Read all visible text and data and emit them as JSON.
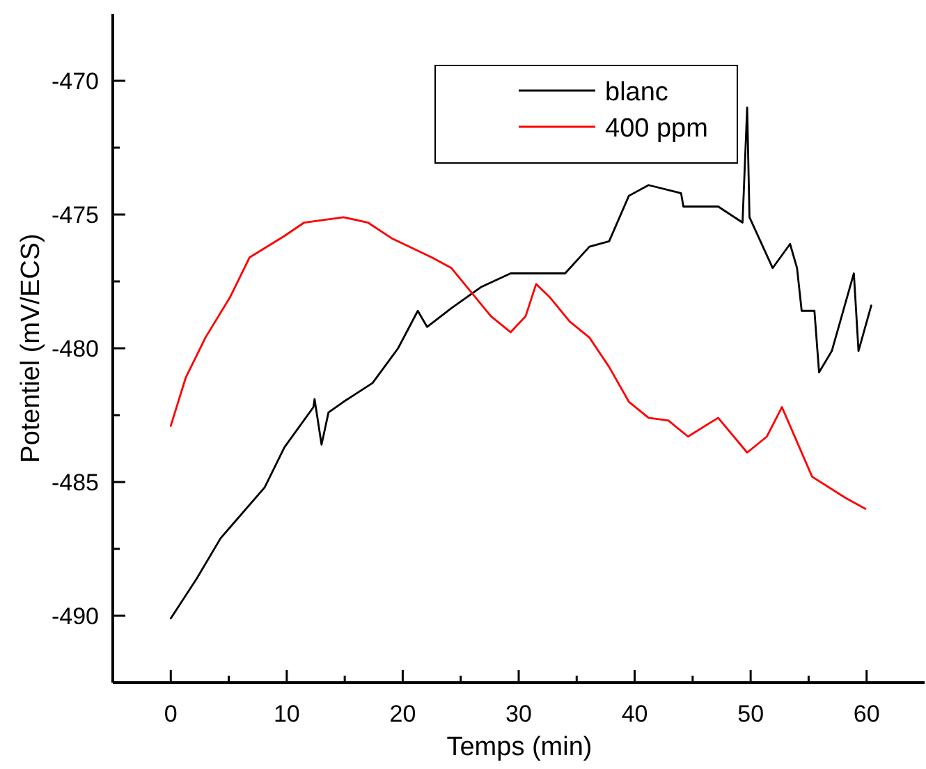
{
  "chart_data": {
    "type": "line",
    "xlabel": "Temps (min)",
    "ylabel": "Potentiel (mV/ECS)",
    "xlim": [
      -5,
      65
    ],
    "xticks": [
      0,
      {
        "value": 5,
        "label": null
      },
      10,
      {
        "value": 15,
        "label": null
      },
      20,
      {
        "value": 25,
        "label": null
      },
      30,
      {
        "value": 35,
        "label": null
      },
      40,
      {
        "value": 45,
        "label": null
      },
      50,
      {
        "value": 55,
        "label": null
      },
      60
    ],
    "ylim": [
      -492.5,
      -467.5
    ],
    "yticks": [
      -490,
      {
        "value": -487.5,
        "label": null
      },
      -485,
      {
        "value": -482.5,
        "label": null
      },
      -480,
      {
        "value": -477.5,
        "label": null
      },
      -475,
      {
        "value": -472.5,
        "label": null
      },
      -470
    ],
    "legend": "top",
    "grid": false,
    "line_style": "solid",
    "marker": "none",
    "series": [
      {
        "name": "blanc",
        "color": "#000000",
        "x": [
          0,
          2.25,
          4.3,
          5.1,
          8.1,
          9.8,
          12.3,
          12.4,
          13.0,
          13.6,
          14.9,
          17.4,
          19.6,
          21.3,
          22.1,
          24.2,
          26.8,
          29.3,
          34.0,
          36.1,
          37.8,
          39.5,
          41.2,
          44.0,
          44.2,
          47.2,
          49.3,
          49.7,
          49.9,
          51.9,
          53.4,
          54.0,
          54.4,
          55.5,
          55.9,
          57.0,
          58.9,
          59.3,
          60.4
        ],
        "values": [
          -490.1,
          -488.6,
          -487.1,
          -486.7,
          -485.2,
          -483.7,
          -482.2,
          -481.9,
          -483.6,
          -482.4,
          -482.0,
          -481.3,
          -480.0,
          -478.6,
          -479.2,
          -478.5,
          -477.7,
          -477.2,
          -477.2,
          -476.2,
          -476.0,
          -474.3,
          -473.9,
          -474.2,
          -474.7,
          -474.7,
          -475.3,
          -471.0,
          -475.1,
          -477.0,
          -476.1,
          -477.0,
          -478.6,
          -478.6,
          -480.9,
          -480.1,
          -477.2,
          -480.1,
          -478.4
        ]
      },
      {
        "name": "400 ppm",
        "color": "#ff0000",
        "x": [
          0,
          1.29,
          2.99,
          5.1,
          6.8,
          9.8,
          11.5,
          14.9,
          17.0,
          19.1,
          22.5,
          24.2,
          25.9,
          27.6,
          29.3,
          30.6,
          31.5,
          32.7,
          34.4,
          36.1,
          37.8,
          39.5,
          41.2,
          42.9,
          44.6,
          47.2,
          49.7,
          51.4,
          52.7,
          54.0,
          55.3,
          58.2,
          59.9
        ],
        "values": [
          -482.9,
          -481.1,
          -479.6,
          -478.1,
          -476.6,
          -475.8,
          -475.3,
          -475.1,
          -475.3,
          -475.9,
          -476.6,
          -477.0,
          -477.9,
          -478.8,
          -479.4,
          -478.8,
          -477.6,
          -478.1,
          -479.0,
          -479.6,
          -480.7,
          -482.0,
          -482.6,
          -482.7,
          -483.3,
          -482.6,
          -483.9,
          -483.3,
          -482.2,
          -483.5,
          -484.8,
          -485.6,
          -486.0
        ]
      }
    ]
  }
}
